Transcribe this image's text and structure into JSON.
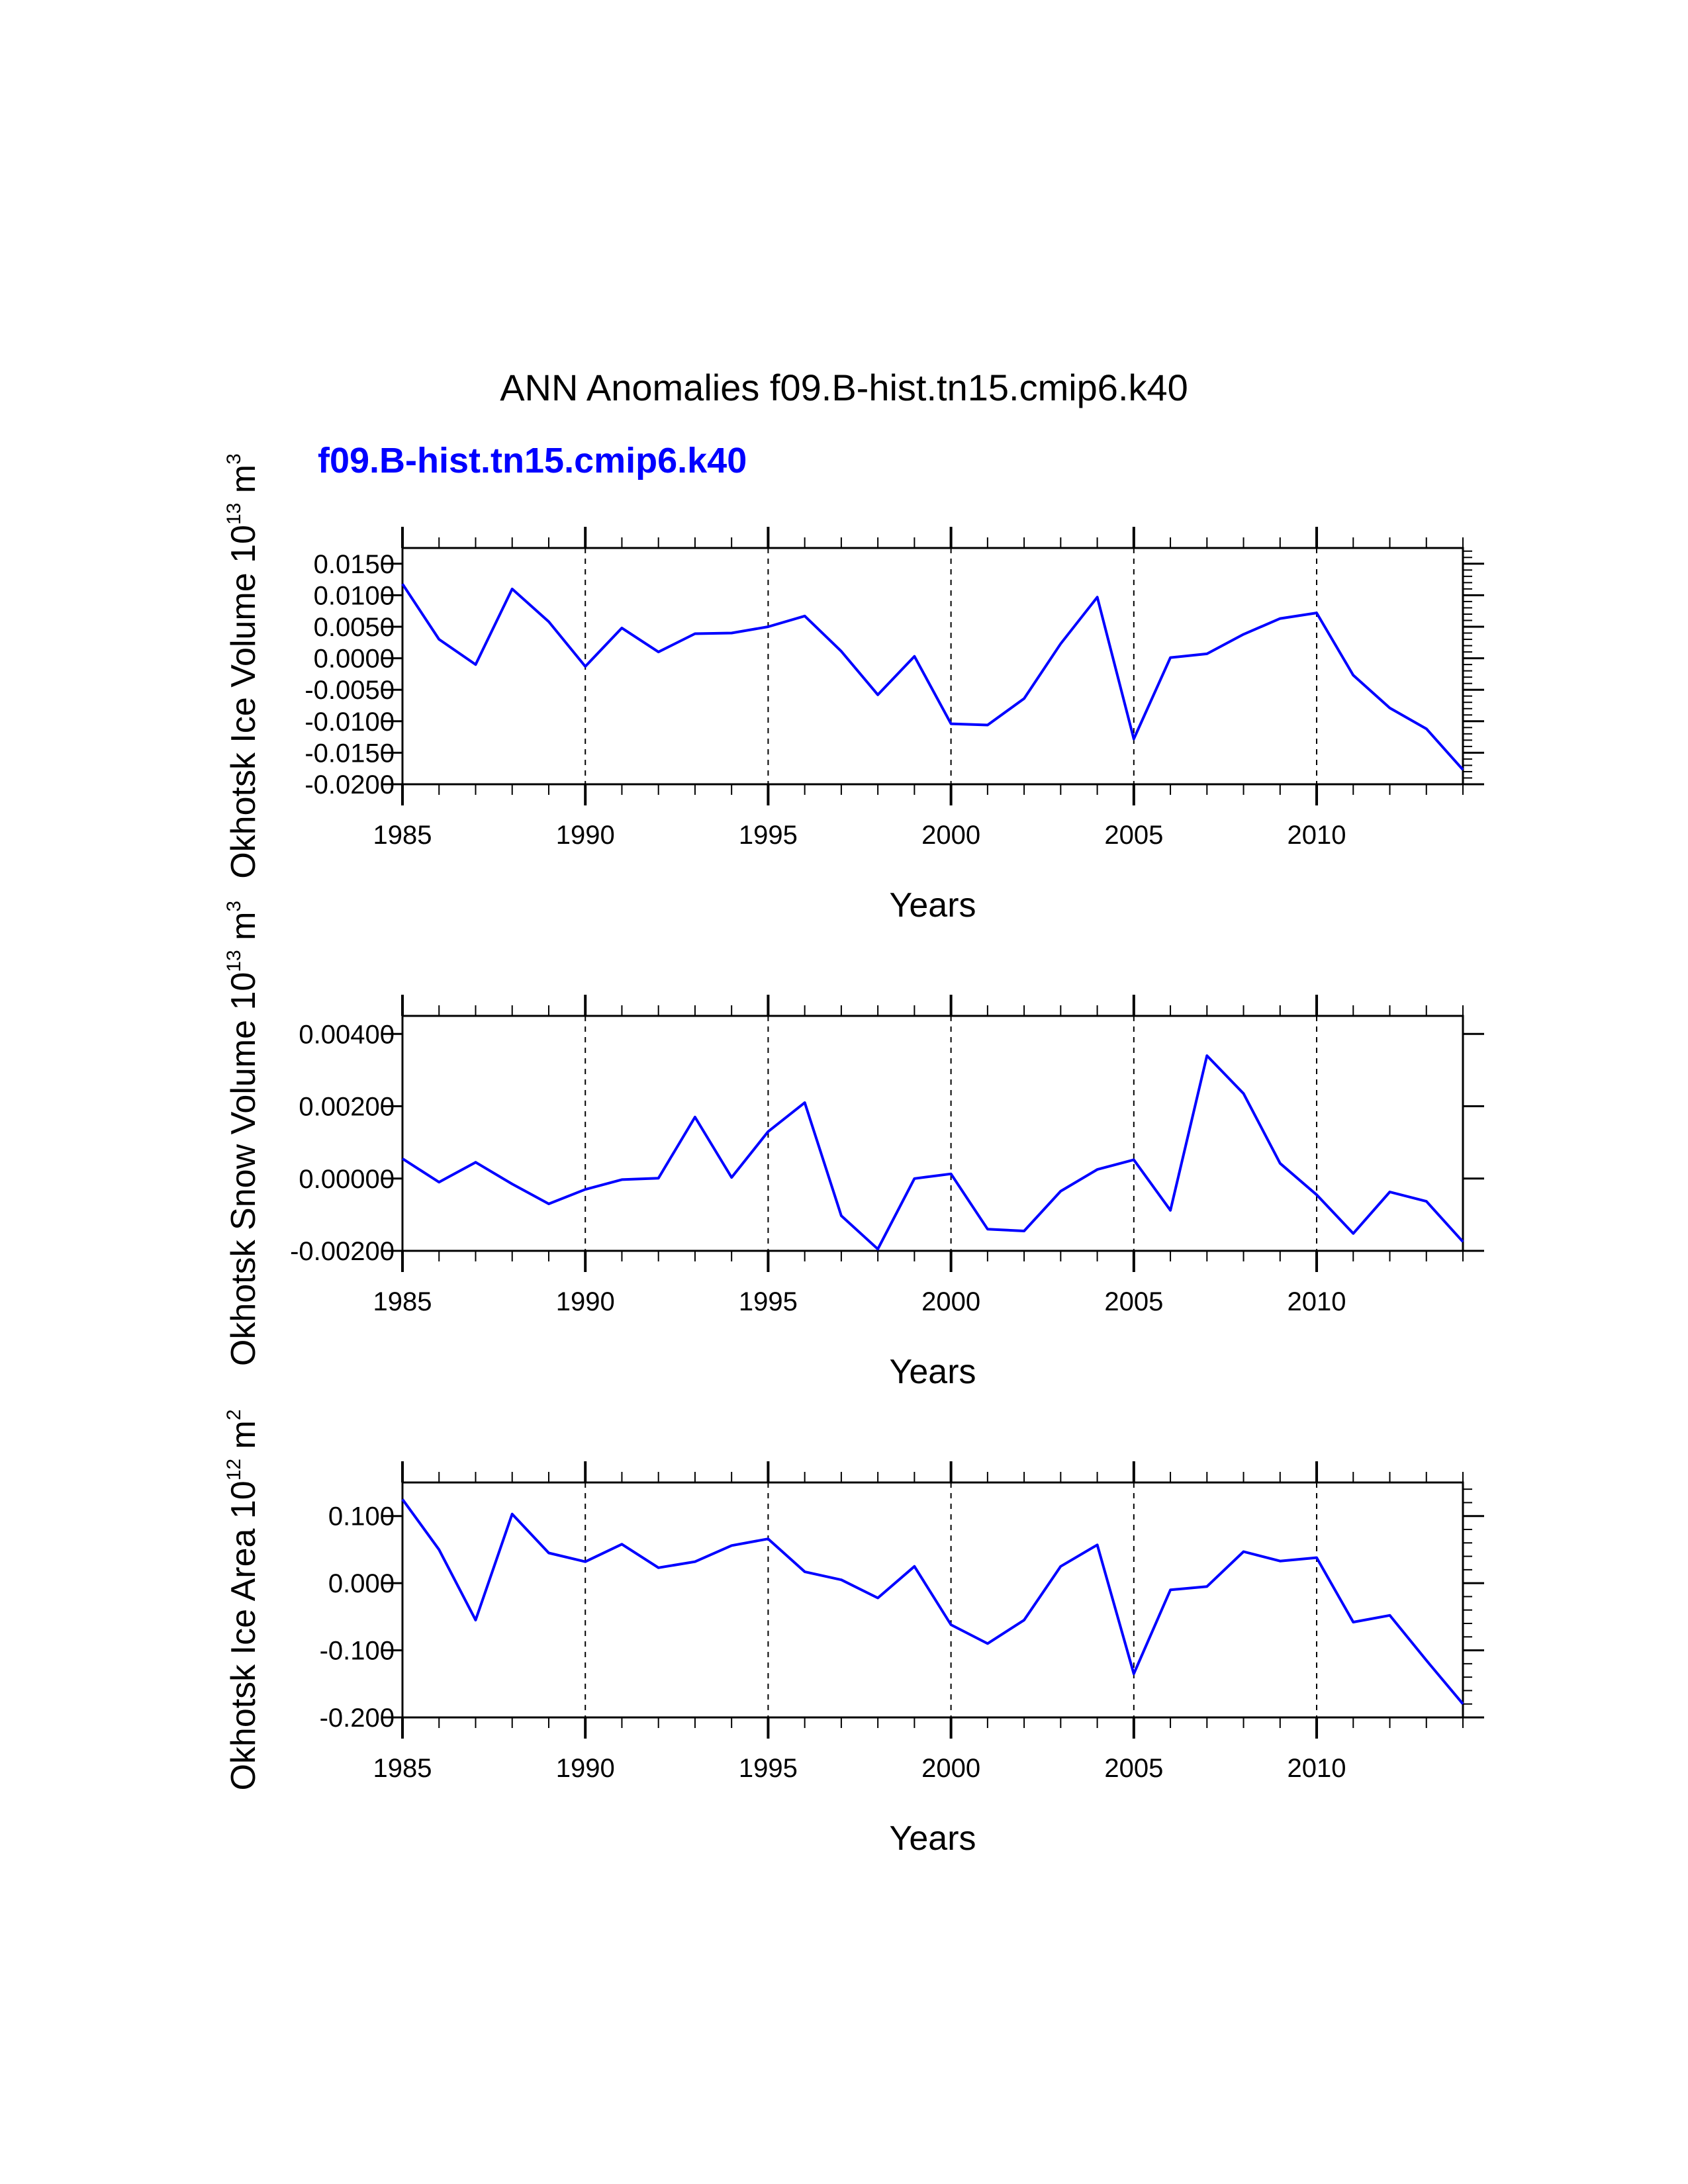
{
  "title": "ANN Anomalies f09.B-hist.tn15.cmip6.k40",
  "case_label": "f09.B-hist.tn15.cmip6.k40",
  "colors": {
    "series": "#0000ff",
    "case_label": "#0000ff",
    "axes": "#000000"
  },
  "chart_data": [
    {
      "type": "line",
      "title": "",
      "xlabel": "Years",
      "ylabel": {
        "text": "Okhotsk Ice Volume 10",
        "exp": "13",
        "unit": " m",
        "unit_exp": "3"
      },
      "xlim": [
        1985,
        2014
      ],
      "ylim": [
        -0.02,
        0.0175
      ],
      "xticks": [
        1985,
        1990,
        1995,
        2000,
        2005,
        2010
      ],
      "yticks": [
        {
          "v": 0.015,
          "label": "0.0150"
        },
        {
          "v": 0.01,
          "label": "0.0100"
        },
        {
          "v": 0.005,
          "label": "0.0050"
        },
        {
          "v": 0.0,
          "label": "0.0000"
        },
        {
          "v": -0.005,
          "label": "-0.0050"
        },
        {
          "v": -0.01,
          "label": "-0.0100"
        },
        {
          "v": -0.015,
          "label": "-0.0150"
        },
        {
          "v": -0.02,
          "label": "-0.0200"
        }
      ],
      "yminor": 0.001,
      "grid": "dashed vertical at major x ticks",
      "series": [
        {
          "name": "f09.B-hist.tn15.cmip6.k40",
          "x": [
            1985,
            1986,
            1987,
            1988,
            1989,
            1990,
            1991,
            1992,
            1993,
            1994,
            1995,
            1996,
            1997,
            1998,
            1999,
            2000,
            2001,
            2002,
            2003,
            2004,
            2005,
            2006,
            2007,
            2008,
            2009,
            2010,
            2011,
            2012,
            2013,
            2014
          ],
          "values": [
            0.0118,
            0.003,
            -0.001,
            0.011,
            0.0058,
            -0.0013,
            0.0048,
            0.001,
            0.0039,
            0.004,
            0.005,
            0.0067,
            0.0011,
            -0.0058,
            0.0003,
            -0.0104,
            -0.0106,
            -0.0064,
            0.0023,
            0.0097,
            -0.0128,
            0.0001,
            0.0007,
            0.0038,
            0.0063,
            0.0072,
            -0.0027,
            -0.0079,
            -0.0112,
            -0.0177
          ]
        }
      ]
    },
    {
      "type": "line",
      "title": "",
      "xlabel": "Years",
      "ylabel": {
        "text": "Okhotsk Snow Volume 10",
        "exp": "13",
        "unit": " m",
        "unit_exp": "3"
      },
      "xlim": [
        1985,
        2014
      ],
      "ylim": [
        -0.002,
        0.0045
      ],
      "xticks": [
        1985,
        1990,
        1995,
        2000,
        2005,
        2010
      ],
      "yticks": [
        {
          "v": 0.004,
          "label": "0.00400"
        },
        {
          "v": 0.002,
          "label": "0.00200"
        },
        {
          "v": 0.0,
          "label": "0.00000"
        },
        {
          "v": -0.002,
          "label": "-0.00200"
        }
      ],
      "yminor": null,
      "grid": "dashed vertical at major x ticks",
      "series": [
        {
          "name": "f09.B-hist.tn15.cmip6.k40",
          "x": [
            1985,
            1986,
            1987,
            1988,
            1989,
            1990,
            1991,
            1992,
            1993,
            1994,
            1995,
            1996,
            1997,
            1998,
            1999,
            2000,
            2001,
            2002,
            2003,
            2004,
            2005,
            2006,
            2007,
            2008,
            2009,
            2010,
            2011,
            2012,
            2013,
            2014
          ],
          "values": [
            0.00055,
            -0.0001,
            0.00045,
            -0.00015,
            -0.0007,
            -0.0003,
            -3e-05,
            1e-05,
            0.0017,
            3e-05,
            0.0013,
            0.0021,
            -0.00103,
            -0.00195,
            0.0,
            0.00013,
            -0.0014,
            -0.00145,
            -0.00035,
            0.00025,
            0.00052,
            -0.00088,
            0.0034,
            0.00235,
            0.00042,
            -0.00045,
            -0.00152,
            -0.00037,
            -0.00063,
            -0.00175
          ]
        }
      ]
    },
    {
      "type": "line",
      "title": "",
      "xlabel": "Years",
      "ylabel": {
        "text": "Okhotsk Ice Area 10",
        "exp": "12",
        "unit": " m",
        "unit_exp": "2"
      },
      "xlim": [
        1985,
        2014
      ],
      "ylim": [
        -0.2,
        0.15
      ],
      "xticks": [
        1985,
        1990,
        1995,
        2000,
        2005,
        2010
      ],
      "yticks": [
        {
          "v": 0.1,
          "label": "0.100"
        },
        {
          "v": 0.0,
          "label": "0.000"
        },
        {
          "v": -0.1,
          "label": "-0.100"
        },
        {
          "v": -0.2,
          "label": "-0.200"
        }
      ],
      "yminor": 0.02,
      "grid": "dashed vertical at major x ticks",
      "series": [
        {
          "name": "f09.B-hist.tn15.cmip6.k40",
          "x": [
            1985,
            1986,
            1987,
            1988,
            1989,
            1990,
            1991,
            1992,
            1993,
            1994,
            1995,
            1996,
            1997,
            1998,
            1999,
            2000,
            2001,
            2002,
            2003,
            2004,
            2005,
            2006,
            2007,
            2008,
            2009,
            2010,
            2011,
            2012,
            2013,
            2014
          ],
          "values": [
            0.125,
            0.05,
            -0.055,
            0.103,
            0.045,
            0.032,
            0.058,
            0.023,
            0.032,
            0.056,
            0.066,
            0.017,
            0.005,
            -0.022,
            0.025,
            -0.062,
            -0.09,
            -0.055,
            0.025,
            0.057,
            -0.135,
            -0.01,
            -0.005,
            0.047,
            0.033,
            0.038,
            -0.058,
            -0.048,
            -0.115,
            -0.18
          ]
        }
      ]
    }
  ]
}
